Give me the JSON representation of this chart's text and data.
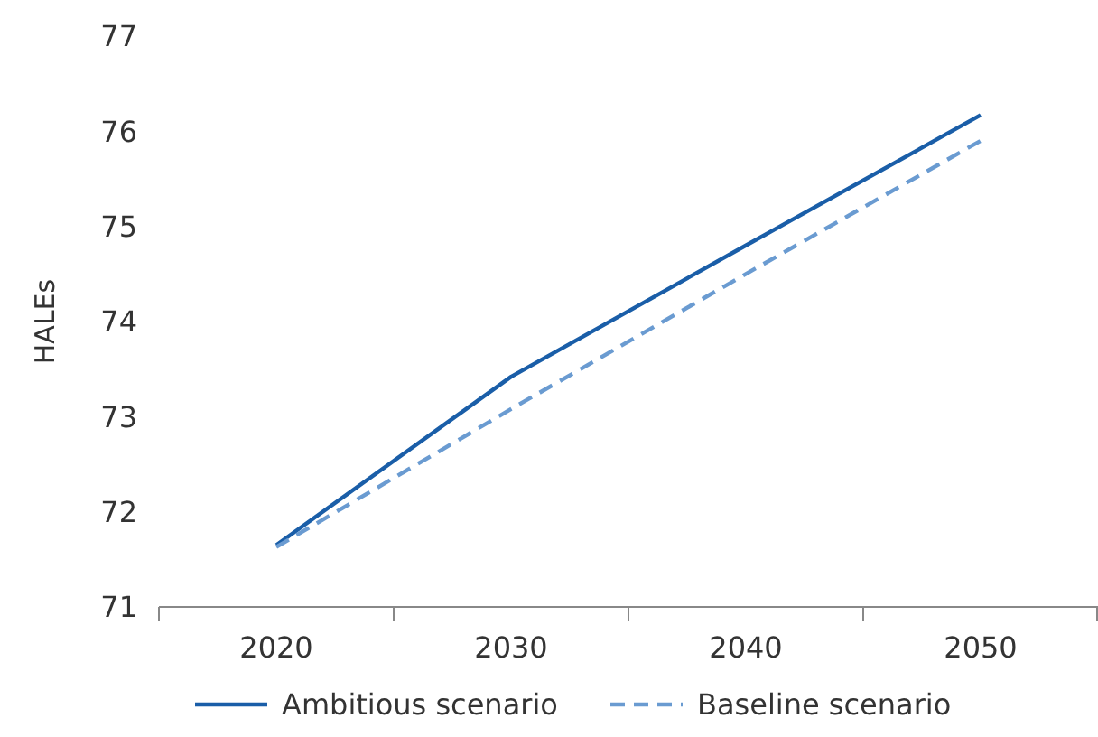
{
  "chart_data": {
    "type": "line",
    "ylabel": "HALEs",
    "categories": [
      "2020",
      "2030",
      "2040",
      "2050"
    ],
    "series": [
      {
        "name": "Ambitious scenario",
        "color": "#1a5ea8",
        "values": [
          71.65,
          73.42,
          74.8,
          76.17
        ],
        "line_style": "solid"
      },
      {
        "name": "Baseline scenario",
        "color": "#6a9bd1",
        "values": [
          71.63,
          73.08,
          74.5,
          75.9
        ],
        "line_style": "dashed"
      }
    ],
    "ylim": [
      71,
      77
    ],
    "yticks": [
      71,
      72,
      73,
      74,
      75,
      76,
      77
    ],
    "grid": false,
    "legend": "bottom",
    "marker": "none"
  }
}
